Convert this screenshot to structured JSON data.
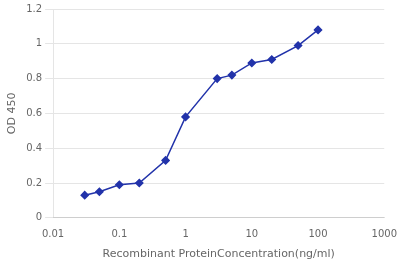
{
  "chart_data": {
    "type": "line",
    "x": [
      0.03,
      0.05,
      0.1,
      0.2,
      0.5,
      1.0,
      3.0,
      5.0,
      10.0,
      20.0,
      50.0,
      100.0
    ],
    "values": [
      0.13,
      0.15,
      0.19,
      0.2,
      0.33,
      0.58,
      0.8,
      0.82,
      0.89,
      0.91,
      0.99,
      1.08
    ],
    "xlabel": "Recombinant ProteinConcentration(ng/ml)",
    "ylabel": "OD 450",
    "xlim": [
      0.01,
      1000
    ],
    "ylim": [
      0,
      1.2
    ],
    "xticks": [
      0.01,
      0.1,
      1,
      10,
      100,
      1000
    ],
    "yticks": [
      0,
      0.2,
      0.4,
      0.6,
      0.8,
      1,
      1.2
    ],
    "log": "x",
    "grid": "y",
    "color": "#2233aa",
    "marker": "diamond",
    "line_style": "solid"
  }
}
